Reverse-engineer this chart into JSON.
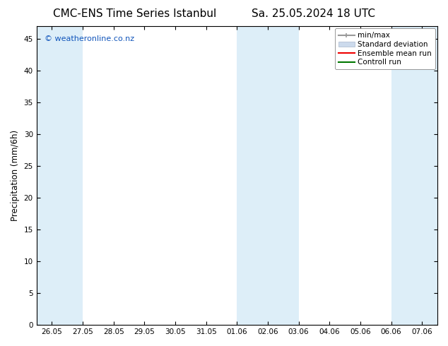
{
  "title_left": "CMC-ENS Time Series Istanbul",
  "title_right": "Sa. 25.05.2024 18 UTC",
  "ylabel": "Precipitation (mm/6h)",
  "watermark": "© weatheronline.co.nz",
  "watermark_color": "#1155bb",
  "x_tick_labels": [
    "26.05",
    "27.05",
    "28.05",
    "29.05",
    "30.05",
    "31.05",
    "01.06",
    "02.06",
    "03.06",
    "04.06",
    "05.06",
    "06.06",
    "07.06"
  ],
  "x_tick_positions": [
    0,
    1,
    2,
    3,
    4,
    5,
    6,
    7,
    8,
    9,
    10,
    11,
    12
  ],
  "ylim": [
    0,
    47
  ],
  "yticks": [
    0,
    5,
    10,
    15,
    20,
    25,
    30,
    35,
    40,
    45
  ],
  "bg_color": "#ffffff",
  "plot_bg_color": "#ffffff",
  "shaded_bands": [
    {
      "xmin": -0.5,
      "xmax": 1.0,
      "color": "#ddeef8"
    },
    {
      "xmin": 6.0,
      "xmax": 8.0,
      "color": "#ddeef8"
    },
    {
      "xmin": 11.0,
      "xmax": 12.5,
      "color": "#ddeef8"
    }
  ],
  "title_fontsize": 11,
  "tick_fontsize": 7.5,
  "ylabel_fontsize": 8.5,
  "legend_fontsize": 7.5,
  "watermark_fontsize": 8
}
